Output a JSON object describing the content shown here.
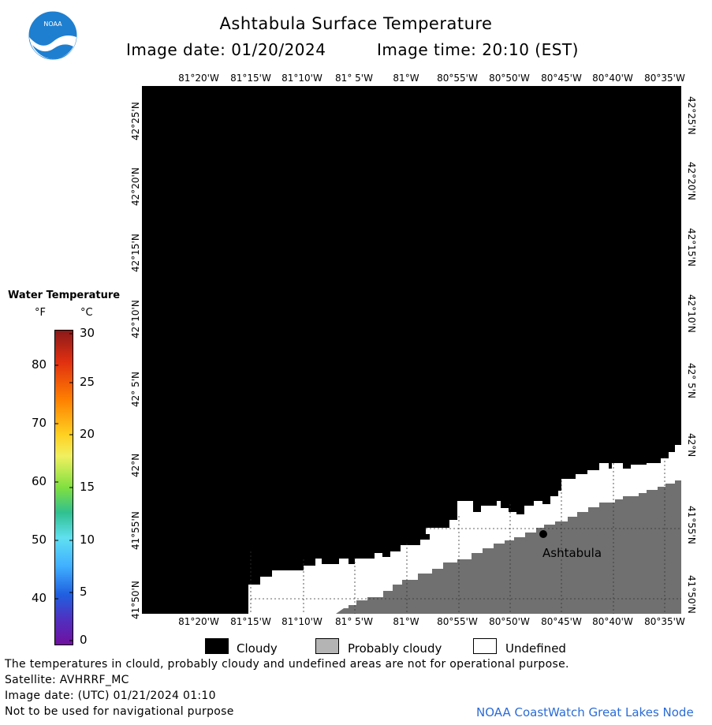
{
  "header": {
    "title": "Ashtabula Surface Temperature",
    "image_date": "Image date: 01/20/2024",
    "image_time": "Image time: 20:10 (EST)",
    "logo_text": "NOAA"
  },
  "map": {
    "longitude_labels": [
      "81°20'W",
      "81°15'W",
      "81°10'W",
      "81° 5'W",
      "81°W",
      "80°55'W",
      "80°50'W",
      "80°45'W",
      "80°40'W",
      "80°35'W"
    ],
    "latitude_labels": [
      "42°25'N",
      "42°20'N",
      "42°15'N",
      "42°10'N",
      "42° 5'N",
      "42°N",
      "41°55'N",
      "41°50'N"
    ],
    "city_label": "Ashtabula"
  },
  "legend": {
    "title": "Water Temperature",
    "unit_f": "°F",
    "unit_c": "°C",
    "fahrenheit_ticks": [
      "80",
      "70",
      "60",
      "50",
      "40"
    ],
    "celsius_ticks": [
      "30",
      "25",
      "20",
      "15",
      "10",
      "5",
      "0"
    ]
  },
  "key": {
    "cloudy": "Cloudy",
    "probably_cloudy": "Probably cloudy",
    "undefined": "Undefined"
  },
  "footer": {
    "line1": "The temperatures in clould, probably cloudy and undefined areas are not for operational purpose.",
    "line2": "Satellite: AVHRRF_MC",
    "line3": "Image date: (UTC) 01/21/2024  01:10",
    "line4": "Not to be used for navigational purpose",
    "credit": "NOAA CoastWatch Great Lakes Node"
  },
  "colors": {
    "cloudy": "#000000",
    "probably_cloudy": "#b4b4b4",
    "undefined": "#ffffff",
    "land": "#707070",
    "credit": "#2b6cd6"
  }
}
